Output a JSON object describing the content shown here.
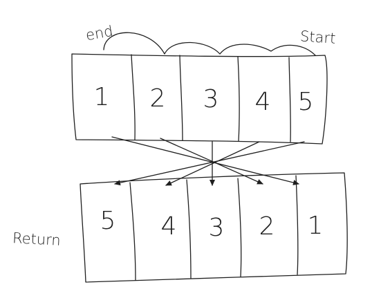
{
  "labels": {
    "start_word": "Start",
    "end_word": "end",
    "return_word": "Return"
  },
  "top_array": [
    "1",
    "2",
    "3",
    "4",
    "5"
  ],
  "bottom_array": [
    "5",
    "4",
    "3",
    "2",
    "1"
  ],
  "colors": {
    "ink": "#1f1f1f",
    "background": "#ffffff"
  }
}
